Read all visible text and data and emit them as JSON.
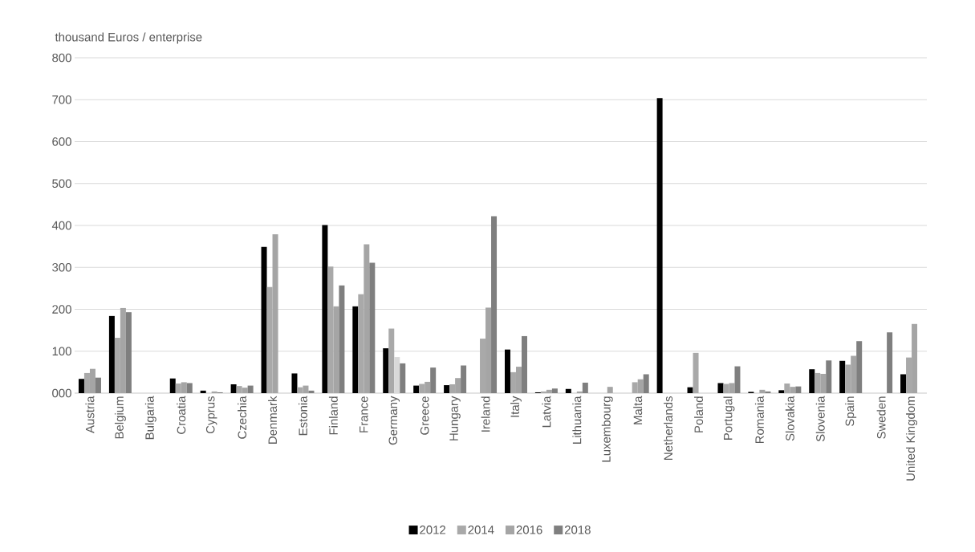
{
  "chart_data": {
    "type": "bar",
    "ylabel": "thousand Euros / enterprise",
    "categories": [
      "Austria",
      "Belgium",
      "Bulgaria",
      "Croatia",
      "Cyprus",
      "Czechia",
      "Denmark",
      "Estonia",
      "Finland",
      "France",
      "Germany",
      "Greece",
      "Hungary",
      "Ireland",
      "Italy",
      "Latvia",
      "Lithuania",
      "Luxembourg",
      "Malta",
      "Netherlands",
      "Poland",
      "Portugal",
      "Romania",
      "Slovakia",
      "Slovenia",
      "Spain",
      "Sweden",
      "United Kingdom"
    ],
    "series": [
      {
        "name": "2012",
        "color": "#000000",
        "values": [
          34,
          184,
          null,
          35,
          6,
          21,
          349,
          47,
          401,
          207,
          107,
          18,
          19,
          null,
          104,
          2,
          10,
          null,
          null,
          704,
          14,
          24,
          3,
          7,
          57,
          77,
          null,
          45
        ]
      },
      {
        "name": "2014",
        "color": "#a9a9a9",
        "values": [
          48,
          132,
          null,
          23,
          null,
          17,
          253,
          14,
          302,
          236,
          154,
          22,
          21,
          130,
          50,
          4,
          null,
          null,
          26,
          null,
          96,
          22,
          null,
          23,
          48,
          68,
          null,
          85
        ]
      },
      {
        "name": "2016",
        "color": "#a5a5a5",
        "colors": [
          "#a5a5a5",
          "#a5a5a5",
          "#a5a5a5",
          "#a5a5a5",
          "#a5a5a5",
          "#a5a5a5",
          "#a5a5a5",
          "#a5a5a5",
          "#a5a5a5",
          "#a5a5a5",
          "#d9d9d9",
          "#a5a5a5",
          "#a5a5a5",
          "#a5a5a5",
          "#a5a5a5",
          "#a5a5a5",
          "#a5a5a5",
          "#a5a5a5",
          "#a5a5a5",
          "#a5a5a5",
          "#a5a5a5",
          "#a5a5a5",
          "#a5a5a5",
          "#a5a5a5",
          "#a5a5a5",
          "#a5a5a5",
          "#a5a5a5",
          "#a5a5a5"
        ],
        "values": [
          58,
          203,
          null,
          26,
          4,
          13,
          379,
          18,
          207,
          355,
          86,
          27,
          36,
          204,
          63,
          8,
          4,
          15,
          33,
          null,
          null,
          24,
          8,
          15,
          46,
          89,
          null,
          165
        ]
      },
      {
        "name": "2018",
        "color": "#7f7f7f",
        "values": [
          37,
          193,
          null,
          24,
          2,
          18,
          null,
          6,
          257,
          311,
          71,
          61,
          66,
          422,
          136,
          11,
          25,
          null,
          45,
          null,
          null,
          64,
          4,
          16,
          78,
          124,
          145,
          null
        ]
      }
    ],
    "ylim": [
      0,
      800
    ],
    "yticks": [
      {
        "value": 0,
        "label": "000"
      },
      {
        "value": 100,
        "label": "100"
      },
      {
        "value": 200,
        "label": "200"
      },
      {
        "value": 300,
        "label": "300"
      },
      {
        "value": 400,
        "label": "400"
      },
      {
        "value": 500,
        "label": "500"
      },
      {
        "value": 600,
        "label": "600"
      },
      {
        "value": 700,
        "label": "700"
      },
      {
        "value": 800,
        "label": "800"
      }
    ],
    "grid": "y",
    "legend": "bottom"
  }
}
